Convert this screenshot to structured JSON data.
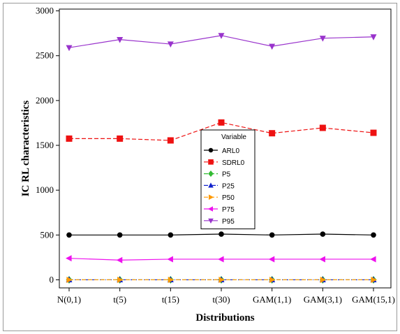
{
  "chart_data": {
    "type": "line",
    "title": "",
    "xlabel": "Distributions",
    "ylabel": "IC RL characteristics",
    "categories": [
      "N(0,1)",
      "t(5)",
      "t(15)",
      "t(30)",
      "GAM(1,1)",
      "GAM(3,1)",
      "GAM(15,1)"
    ],
    "ylim": [
      -90,
      3020
    ],
    "yticks": [
      0,
      500,
      1000,
      1500,
      2000,
      2500,
      3000
    ],
    "grid": false,
    "legend_title": "Variable",
    "legend_position": "center",
    "series": [
      {
        "name": "ARL0",
        "color": "#000000",
        "marker": "circle",
        "dash": "solid",
        "values": [
          500,
          500,
          500,
          510,
          500,
          510,
          500
        ]
      },
      {
        "name": "SDRL0",
        "color": "#ee1111",
        "marker": "square",
        "dash": "dashed",
        "values": [
          1575,
          1575,
          1555,
          1755,
          1635,
          1695,
          1640
        ]
      },
      {
        "name": "P5",
        "color": "#33bb33",
        "marker": "diamond",
        "dash": "dashed",
        "values": [
          0,
          0,
          0,
          0,
          0,
          0,
          0
        ]
      },
      {
        "name": "P25",
        "color": "#1122cc",
        "marker": "triangle-up",
        "dash": "dashdot",
        "values": [
          0,
          0,
          0,
          0,
          0,
          0,
          0
        ]
      },
      {
        "name": "P50",
        "color": "#ff9900",
        "marker": "triangle-right",
        "dash": "dashed",
        "values": [
          0,
          0,
          0,
          0,
          0,
          0,
          0
        ]
      },
      {
        "name": "P75",
        "color": "#ee11ee",
        "marker": "triangle-left",
        "dash": "solid",
        "values": [
          240,
          220,
          230,
          230,
          230,
          230,
          230
        ]
      },
      {
        "name": "P95",
        "color": "#9933cc",
        "marker": "triangle-down",
        "dash": "solid",
        "values": [
          2590,
          2680,
          2630,
          2725,
          2605,
          2695,
          2710
        ]
      }
    ]
  }
}
